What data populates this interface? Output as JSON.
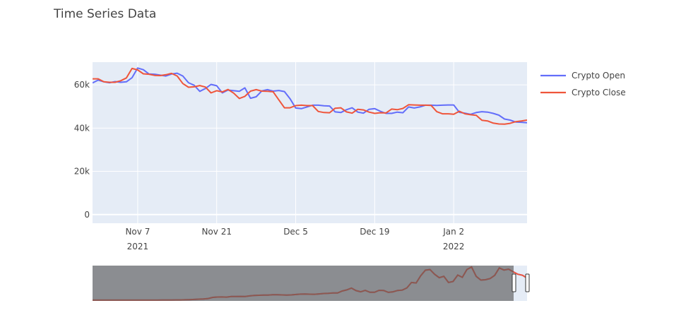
{
  "chart_data": {
    "type": "line",
    "title": "Time Series Data",
    "xlabel": "",
    "ylabel": "",
    "ylim": [
      -4000,
      70500
    ],
    "xlim": [
      "2021-10-30",
      "2022-01-15"
    ],
    "grid": true,
    "legend_position": "top-right",
    "y_ticks": [
      {
        "value": 0,
        "label": "0"
      },
      {
        "value": 20000,
        "label": "20k"
      },
      {
        "value": 40000,
        "label": "40k"
      },
      {
        "value": 60000,
        "label": "60k"
      }
    ],
    "x_ticks": [
      {
        "date": "2021-11-07",
        "label": "Nov 7",
        "year": "2021"
      },
      {
        "date": "2021-11-21",
        "label": "Nov 21",
        "year": ""
      },
      {
        "date": "2021-12-05",
        "label": "Dec 5",
        "year": ""
      },
      {
        "date": "2021-12-19",
        "label": "Dec 19",
        "year": ""
      },
      {
        "date": "2022-01-02",
        "label": "Jan 2",
        "year": "2022"
      }
    ],
    "x": [
      "2021-10-30",
      "2021-10-31",
      "2021-11-01",
      "2021-11-02",
      "2021-11-03",
      "2021-11-04",
      "2021-11-05",
      "2021-11-06",
      "2021-11-07",
      "2021-11-08",
      "2021-11-09",
      "2021-11-10",
      "2021-11-11",
      "2021-11-12",
      "2021-11-13",
      "2021-11-14",
      "2021-11-15",
      "2021-11-16",
      "2021-11-17",
      "2021-11-18",
      "2021-11-19",
      "2021-11-20",
      "2021-11-21",
      "2021-11-22",
      "2021-11-23",
      "2021-11-24",
      "2021-11-25",
      "2021-11-26",
      "2021-11-27",
      "2021-11-28",
      "2021-11-29",
      "2021-11-30",
      "2021-12-01",
      "2021-12-02",
      "2021-12-03",
      "2021-12-04",
      "2021-12-05",
      "2021-12-06",
      "2021-12-07",
      "2021-12-08",
      "2021-12-09",
      "2021-12-10",
      "2021-12-11",
      "2021-12-12",
      "2021-12-13",
      "2021-12-14",
      "2021-12-15",
      "2021-12-16",
      "2021-12-17",
      "2021-12-18",
      "2021-12-19",
      "2021-12-20",
      "2021-12-21",
      "2021-12-22",
      "2021-12-23",
      "2021-12-24",
      "2021-12-25",
      "2021-12-26",
      "2021-12-27",
      "2021-12-28",
      "2021-12-29",
      "2021-12-30",
      "2021-12-31",
      "2022-01-01",
      "2022-01-02",
      "2022-01-03",
      "2022-01-04",
      "2022-01-05",
      "2022-01-06",
      "2022-01-07",
      "2022-01-08",
      "2022-01-09",
      "2022-01-10",
      "2022-01-11",
      "2022-01-12",
      "2022-01-13",
      "2022-01-14",
      "2022-01-15"
    ],
    "series": [
      {
        "name": "Crypto Open",
        "color": "#636efa",
        "values": [
          60900,
          62200,
          61400,
          61000,
          61500,
          61200,
          61400,
          63300,
          67800,
          67000,
          65000,
          64900,
          64500,
          64100,
          65000,
          65400,
          64100,
          61000,
          59800,
          57000,
          58300,
          60200,
          59600,
          56300,
          57600,
          57300,
          57000,
          58600,
          53800,
          54500,
          57200,
          57800,
          57100,
          57400,
          56900,
          53600,
          49300,
          49000,
          49800,
          50600,
          50600,
          50300,
          50200,
          47500,
          47200,
          48500,
          49400,
          47400,
          46900,
          48700,
          49000,
          47800,
          46800,
          46800,
          47400,
          47100,
          49800,
          49300,
          49800,
          50600,
          50600,
          50500,
          50600,
          50700,
          50700,
          47300,
          46900,
          46400,
          47200,
          47600,
          47400,
          46800,
          46000,
          44200,
          43700,
          42800,
          42700,
          42500
        ]
      },
      {
        "name": "Crypto Close",
        "color": "#ef553b",
        "values": [
          62800,
          62800,
          61400,
          61200,
          61200,
          61900,
          63200,
          67600,
          66900,
          65100,
          64900,
          64400,
          64300,
          64700,
          65300,
          64100,
          60600,
          58900,
          59100,
          59700,
          59000,
          56300,
          57300,
          56700,
          57900,
          56200,
          53700,
          54700,
          57100,
          57800,
          57100,
          57000,
          56800,
          53100,
          49400,
          49400,
          50400,
          50600,
          50400,
          50400,
          47700,
          47200,
          47100,
          49200,
          49400,
          47500,
          46900,
          48700,
          48400,
          47400,
          46800,
          47100,
          47000,
          48800,
          48500,
          49100,
          50800,
          50700,
          50600,
          50600,
          50500,
          47600,
          46600,
          46600,
          46400,
          47800,
          46600,
          46200,
          45900,
          43600,
          43300,
          42300,
          41900,
          41800,
          42200,
          43000,
          43300,
          43700
        ]
      }
    ],
    "rangeslider": {
      "series": [
        {
          "name": "Crypto Open",
          "color": "#636efa",
          "values": [
            100,
            100,
            100,
            100,
            100,
            100,
            100,
            100,
            100,
            100,
            100,
            100,
            100,
            100,
            200,
            300,
            300,
            400,
            500,
            600,
            800,
            1100,
            1500,
            2000,
            2500,
            3300,
            5400,
            6100,
            6200,
            5900,
            7000,
            7100,
            7300,
            7200,
            8200,
            9100,
            9500,
            9700,
            9900,
            10400,
            10600,
            10200,
            9800,
            10200,
            10900,
            11600,
            11800,
            11500,
            11400,
            12100,
            12800,
            13300,
            13900,
            13800,
            17600,
            19700,
            23300,
            18400,
            16100,
            18800,
            15100,
            15200,
            19000,
            18600,
            15000,
            16100,
            18700,
            19300,
            23600,
            34000,
            33000,
            47000,
            57500,
            58700,
            49800,
            43200,
            45800,
            34000,
            35900,
            48200,
            43800,
            58900,
            63600,
            45800,
            38500,
            39300,
            41600,
            47700,
            61900,
            57800,
            59600,
            54600,
            49800,
            47800,
            42500
          ]
        },
        {
          "name": "Crypto Close",
          "color": "#ef553b",
          "values": [
            100,
            100,
            100,
            100,
            100,
            100,
            100,
            100,
            100,
            100,
            100,
            100,
            100,
            100,
            200,
            300,
            300,
            400,
            500,
            600,
            800,
            1100,
            1500,
            2000,
            2500,
            3300,
            5400,
            6100,
            6200,
            5900,
            7000,
            7100,
            7300,
            7200,
            8200,
            9100,
            9500,
            9700,
            9900,
            10400,
            10600,
            10200,
            9800,
            10200,
            10900,
            11600,
            11800,
            11500,
            11400,
            12100,
            12800,
            13300,
            13900,
            13800,
            17600,
            19700,
            23300,
            18400,
            16100,
            18800,
            15100,
            15200,
            19000,
            18600,
            15000,
            16100,
            18700,
            19300,
            23600,
            34000,
            33000,
            47000,
            57500,
            58700,
            49800,
            43200,
            45800,
            34000,
            35900,
            48200,
            43800,
            58900,
            63600,
            45800,
            38500,
            39300,
            41600,
            47700,
            61900,
            57800,
            59600,
            54600,
            49800,
            47800,
            42500
          ]
        }
      ]
    }
  }
}
